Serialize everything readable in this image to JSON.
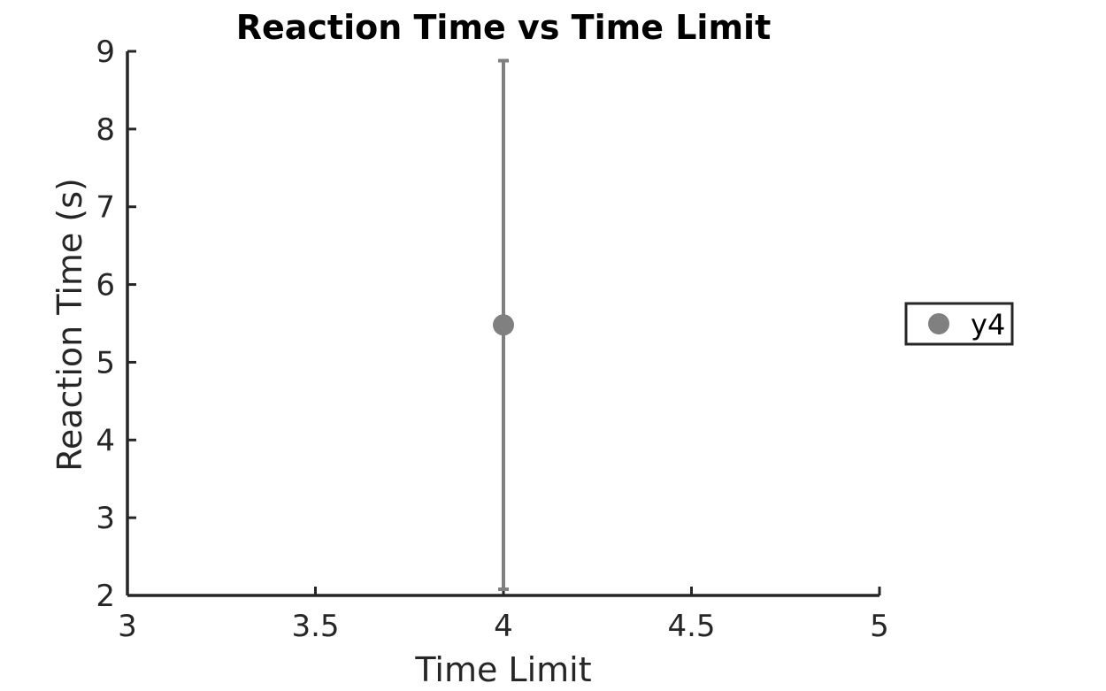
{
  "chart_data": {
    "type": "scatter",
    "title": "Reaction Time vs Time Limit",
    "xlabel": "Time Limit",
    "ylabel": "Reaction Time (s)",
    "xlim": [
      3,
      5
    ],
    "ylim": [
      2,
      9
    ],
    "xticks": [
      3,
      3.5,
      4,
      4.5,
      5
    ],
    "xtick_labels": [
      "3",
      "3.5",
      "4",
      "4.5",
      "5"
    ],
    "yticks": [
      2,
      3,
      4,
      5,
      6,
      7,
      8,
      9
    ],
    "ytick_labels": [
      "2",
      "3",
      "4",
      "5",
      "6",
      "7",
      "8",
      "9"
    ],
    "grid": false,
    "legend_position": "outside-right",
    "series": [
      {
        "name": "y4",
        "color": "#808080",
        "points": [
          {
            "x": 4,
            "y": 5.48,
            "err_low": 2.08,
            "err_high": 8.88
          }
        ]
      }
    ]
  }
}
